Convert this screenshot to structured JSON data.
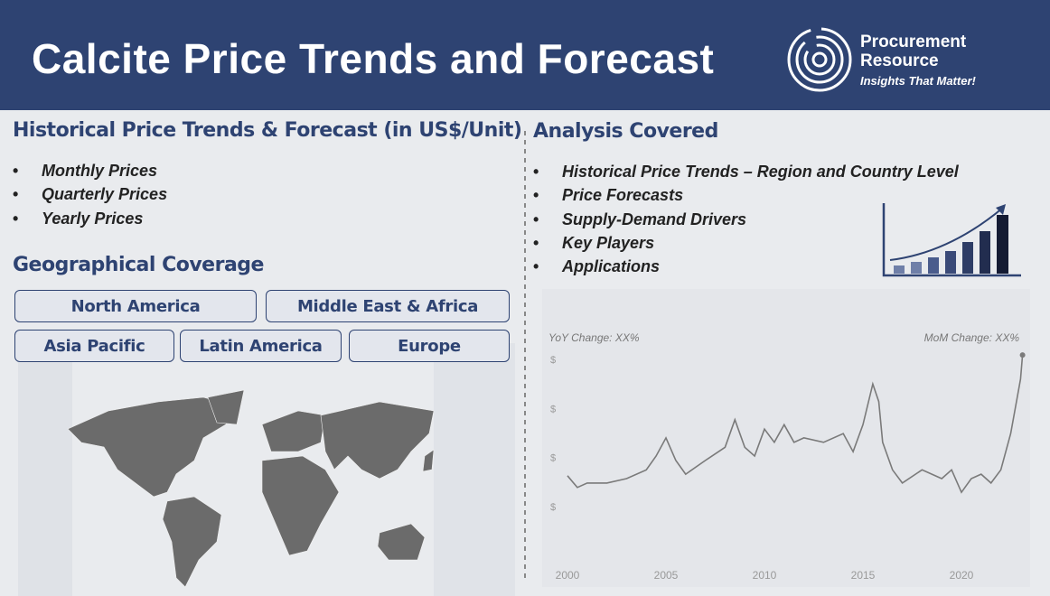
{
  "header": {
    "title": "Calcite Price Trends and Forecast",
    "logo": {
      "name_line1": "Procurement",
      "name_line2": "Resource",
      "tagline": "Insights That Matter!"
    }
  },
  "left": {
    "heading": "Historical Price Trends & Forecast (in US$/Unit)",
    "bullets": [
      "Monthly Prices",
      "Quarterly Prices",
      "Yearly Prices"
    ],
    "coverage_heading": "Geographical Coverage",
    "regions": [
      "North America",
      "Middle East & Africa",
      "Asia Pacific",
      "Latin America",
      "Europe"
    ]
  },
  "right": {
    "heading": "Analysis Covered",
    "bullets": [
      "Historical Price Trends – Region and Country Level",
      "Price Forecasts",
      "Supply-Demand Drivers",
      "Key Players",
      "Applications"
    ]
  },
  "chart_data": {
    "type": "line",
    "annotations": [
      "YoY Change: XX%",
      "MoM Change: XX%"
    ],
    "x": [
      2000,
      2000.5,
      2001,
      2002,
      2003,
      2004,
      2004.5,
      2005,
      2005.5,
      2006,
      2007,
      2008,
      2008.5,
      2009,
      2009.5,
      2010,
      2010.5,
      2011,
      2011.5,
      2012,
      2013,
      2014,
      2014.5,
      2015,
      2015.5,
      2015.8,
      2016,
      2016.5,
      2017,
      2018,
      2019,
      2019.5,
      2020,
      2020.5,
      2021,
      2021.5,
      2022,
      2022.5,
      2023,
      2023.1
    ],
    "series": [
      {
        "color": "#7a7a7a",
        "values": [
          0.63,
          0.39,
          0.48,
          0.48,
          0.57,
          0.75,
          1.03,
          1.4,
          0.94,
          0.66,
          0.94,
          1.21,
          1.77,
          1.21,
          1.03,
          1.58,
          1.31,
          1.67,
          1.31,
          1.4,
          1.31,
          1.49,
          1.12,
          1.67,
          2.5,
          2.14,
          1.31,
          0.75,
          0.48,
          0.75,
          0.57,
          0.75,
          0.29,
          0.57,
          0.66,
          0.48,
          0.75,
          1.49,
          2.6,
          3.09
        ]
      }
    ],
    "xlim": [
      2000,
      2023.1
    ],
    "xticks": [
      2000,
      2005,
      2010,
      2015,
      2020
    ],
    "ylim": [
      0,
      3.1
    ],
    "yticks": [
      {
        "value": 0,
        "label": "$"
      },
      {
        "value": 1,
        "label": "$"
      },
      {
        "value": 2,
        "label": "$"
      },
      {
        "value": 3,
        "label": "$"
      }
    ]
  }
}
